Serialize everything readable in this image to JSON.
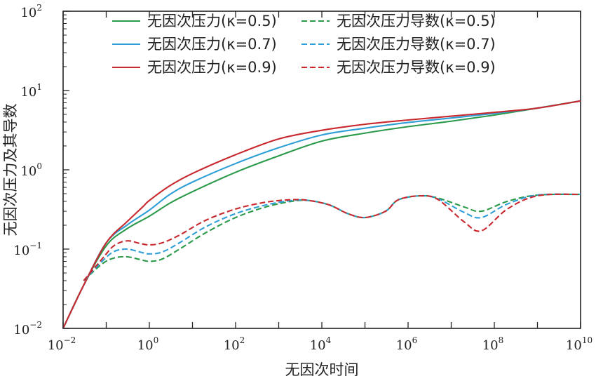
{
  "chart_data": {
    "type": "line",
    "xlabel": "无因次时间",
    "ylabel": "无因次压力及其导数",
    "x_scale": "log",
    "y_scale": "log",
    "xlim": [
      0.01,
      10000000000
    ],
    "ylim": [
      0.01,
      100
    ],
    "x_ticks": [
      {
        "base": "10",
        "exp": "−2",
        "value": 0.01
      },
      {
        "base": "10",
        "exp": "0",
        "value": 1
      },
      {
        "base": "10",
        "exp": "2",
        "value": 100
      },
      {
        "base": "10",
        "exp": "4",
        "value": 10000
      },
      {
        "base": "10",
        "exp": "6",
        "value": 1000000
      },
      {
        "base": "10",
        "exp": "8",
        "value": 100000000
      },
      {
        "base": "10",
        "exp": "10",
        "value": 10000000000
      }
    ],
    "y_ticks": [
      {
        "base": "10",
        "exp": "−2",
        "value": 0.01
      },
      {
        "base": "10",
        "exp": "−1",
        "value": 0.1
      },
      {
        "base": "10",
        "exp": "0",
        "value": 1
      },
      {
        "base": "10",
        "exp": "1",
        "value": 10
      },
      {
        "base": "10",
        "exp": "2",
        "value": 100
      }
    ],
    "grid": false,
    "legend_position": "top-center",
    "series": [
      {
        "name": "无因次压力(κ=0.5)",
        "color": "#2a9a4a",
        "dash": "solid",
        "x": [
          0.01,
          0.03,
          0.1,
          0.3,
          1,
          3,
          10,
          100,
          1000,
          10000,
          100000,
          1000000,
          10000000,
          100000000,
          1000000000,
          10000000000
        ],
        "y": [
          0.01,
          0.035,
          0.11,
          0.18,
          0.26,
          0.38,
          0.53,
          0.93,
          1.5,
          2.3,
          2.9,
          3.5,
          4.1,
          4.9,
          6.0,
          7.4
        ]
      },
      {
        "name": "无因次压力(κ=0.7)",
        "color": "#2d9fd6",
        "dash": "solid",
        "x": [
          0.01,
          0.03,
          0.1,
          0.3,
          1,
          3,
          10,
          100,
          1000,
          10000,
          100000,
          1000000,
          10000000,
          100000000,
          1000000000,
          10000000000
        ],
        "y": [
          0.01,
          0.035,
          0.12,
          0.2,
          0.31,
          0.49,
          0.7,
          1.2,
          1.9,
          2.75,
          3.35,
          3.95,
          4.5,
          5.15,
          6.0,
          7.4
        ]
      },
      {
        "name": "无因次压力(κ=0.9)",
        "color": "#c8282e",
        "dash": "solid",
        "x": [
          0.01,
          0.03,
          0.1,
          0.3,
          0.7,
          1,
          3,
          10,
          100,
          1000,
          10000,
          100000,
          1000000,
          10000000,
          100000000,
          1000000000,
          10000000000
        ],
        "y": [
          0.01,
          0.035,
          0.12,
          0.22,
          0.34,
          0.41,
          0.63,
          0.9,
          1.55,
          2.45,
          3.15,
          3.75,
          4.25,
          4.75,
          5.3,
          6.0,
          7.4
        ]
      },
      {
        "name": "无因次压力导数(κ=0.5)",
        "color": "#2a9a4a",
        "dash": "dashed",
        "x": [
          0.03,
          0.08,
          0.15,
          0.3,
          0.6,
          1,
          2,
          5,
          20,
          100,
          500,
          2000,
          5000,
          15000,
          40000,
          100000,
          300000,
          600000,
          2000000,
          5000000,
          20000000,
          50000000,
          200000000,
          1000000000,
          10000000000
        ],
        "y": [
          0.04,
          0.065,
          0.077,
          0.08,
          0.074,
          0.07,
          0.075,
          0.1,
          0.16,
          0.25,
          0.34,
          0.4,
          0.41,
          0.36,
          0.28,
          0.25,
          0.3,
          0.42,
          0.47,
          0.44,
          0.34,
          0.3,
          0.4,
          0.48,
          0.49
        ]
      },
      {
        "name": "无因次压力导数(κ=0.7)",
        "color": "#2d9fd6",
        "dash": "dashed",
        "x": [
          0.03,
          0.08,
          0.15,
          0.3,
          0.6,
          1,
          2,
          5,
          20,
          100,
          500,
          2000,
          5000,
          15000,
          40000,
          100000,
          300000,
          600000,
          2000000,
          5000000,
          20000000,
          50000000,
          200000000,
          1000000000,
          10000000000
        ],
        "y": [
          0.04,
          0.07,
          0.093,
          0.1,
          0.092,
          0.087,
          0.092,
          0.12,
          0.19,
          0.28,
          0.36,
          0.41,
          0.41,
          0.36,
          0.28,
          0.25,
          0.3,
          0.42,
          0.47,
          0.43,
          0.29,
          0.25,
          0.37,
          0.48,
          0.49
        ]
      },
      {
        "name": "无因次压力导数(κ=0.9)",
        "color": "#c8282e",
        "dash": "dashed",
        "x": [
          0.03,
          0.08,
          0.15,
          0.3,
          0.6,
          1,
          2,
          5,
          20,
          100,
          500,
          2000,
          5000,
          15000,
          40000,
          100000,
          300000,
          600000,
          2000000,
          5000000,
          20000000,
          50000000,
          200000000,
          1000000000,
          10000000000
        ],
        "y": [
          0.04,
          0.075,
          0.11,
          0.127,
          0.118,
          0.113,
          0.12,
          0.15,
          0.23,
          0.32,
          0.39,
          0.42,
          0.41,
          0.36,
          0.28,
          0.25,
          0.3,
          0.42,
          0.47,
          0.42,
          0.22,
          0.17,
          0.32,
          0.47,
          0.49
        ]
      }
    ]
  }
}
